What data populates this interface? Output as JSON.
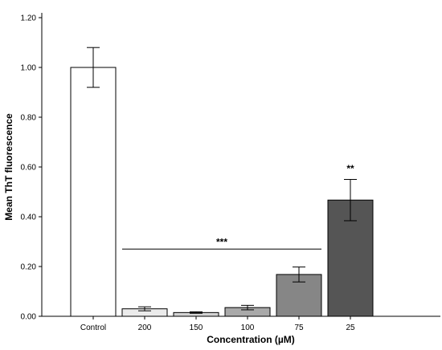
{
  "chart_data": {
    "type": "bar",
    "xlabel": "Concentration (µM)",
    "ylabel": "Mean ThT fluorescence",
    "ylim": [
      0,
      1.2
    ],
    "yticks": [
      "0.00",
      "0.20",
      "0.40",
      "0.60",
      "0.80",
      "1.00",
      "1.20"
    ],
    "categories": [
      "Control",
      "200",
      "150",
      "100",
      "75",
      "25"
    ],
    "values": [
      1.0,
      0.03,
      0.015,
      0.035,
      0.168,
      0.467
    ],
    "error_bars": [
      0.08,
      0.008,
      0.003,
      0.009,
      0.03,
      0.083
    ],
    "bar_colors": [
      "#ffffff",
      "#ebebeb",
      "#d3d3d3",
      "#a9a9a9",
      "#868686",
      "#555555"
    ],
    "annotations": [
      {
        "text": "***",
        "type": "bracket",
        "from_category": "200",
        "to_category": "75",
        "y": 0.27
      },
      {
        "text": "**",
        "type": "label",
        "category": "25",
        "y": 0.58
      }
    ],
    "grid": false,
    "legend": "none"
  }
}
